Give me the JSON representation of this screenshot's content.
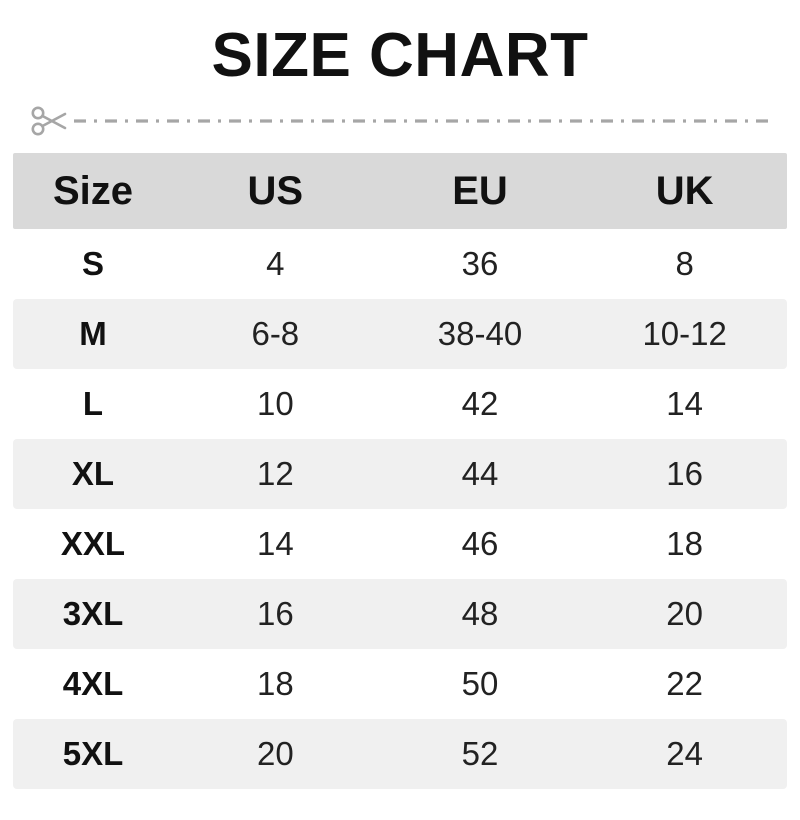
{
  "title": "SIZE CHART",
  "chart_data": {
    "type": "table",
    "title": "SIZE CHART",
    "columns": [
      "Size",
      "US",
      "EU",
      "UK"
    ],
    "rows": [
      [
        "S",
        "4",
        "36",
        "8"
      ],
      [
        "M",
        "6-8",
        "38-40",
        "10-12"
      ],
      [
        "L",
        "10",
        "42",
        "14"
      ],
      [
        "XL",
        "12",
        "44",
        "16"
      ],
      [
        "XXL",
        "14",
        "46",
        "18"
      ],
      [
        "3XL",
        "16",
        "48",
        "20"
      ],
      [
        "4XL",
        "18",
        "50",
        "22"
      ],
      [
        "5XL",
        "20",
        "52",
        "24"
      ]
    ],
    "layout_hints": {
      "header_background": "#d9d9d9",
      "stripe_background": "#f0f0f0",
      "striped_rows": "even rows (M, XL, 3XL, 5XL)",
      "grid": false,
      "text_alignment": "center"
    }
  },
  "colors": {
    "title_text": "#111111",
    "header_bg": "#d9d9d9",
    "stripe_bg": "#f0f0f0",
    "body_text": "#222222",
    "cutline_gray": "#a6a6a6"
  },
  "decorations": {
    "cut_line_icon": "scissors-icon",
    "cut_line_style": "dash-dot"
  }
}
